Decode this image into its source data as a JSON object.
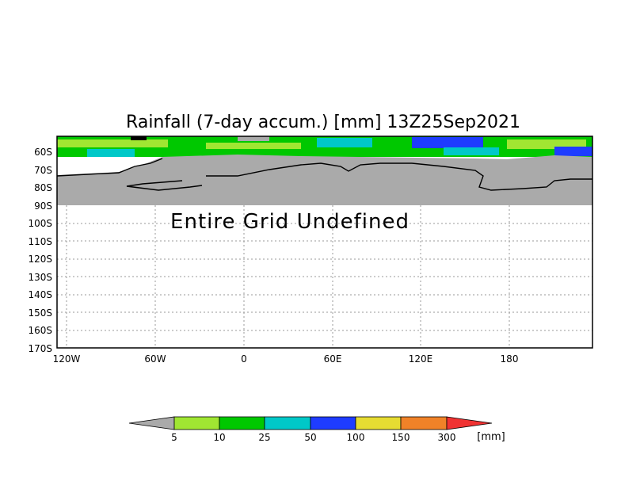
{
  "map": {
    "title": "Rainfall (7-day accum.) [mm] 13Z25Sep2021",
    "lat_labels": [
      "60S",
      "70S",
      "80S",
      "90S",
      "100S",
      "110S",
      "120S",
      "130S",
      "140S",
      "150S",
      "160S",
      "170S"
    ],
    "lon_labels": [
      "120W",
      "60W",
      "0",
      "60E",
      "120E",
      "180"
    ],
    "undefined_message": "Entire Grid Undefined",
    "colors": {
      "land": "#aaaaaa",
      "frame": "#000000",
      "rain_bands": [
        "#a0e632",
        "#00c800",
        "#00c8c8",
        "#1e3cff",
        "#e6dc32",
        "#f08228",
        "#f03232"
      ]
    }
  },
  "colorbar": {
    "levels": [
      "5",
      "10",
      "25",
      "50",
      "100",
      "150",
      "300"
    ],
    "unit": "[mm]",
    "below_color": "#aaaaaa",
    "bands": [
      "#a0e632",
      "#00c800",
      "#00c8c8",
      "#1e3cff",
      "#e6dc32",
      "#f08228",
      "#f03232"
    ]
  }
}
